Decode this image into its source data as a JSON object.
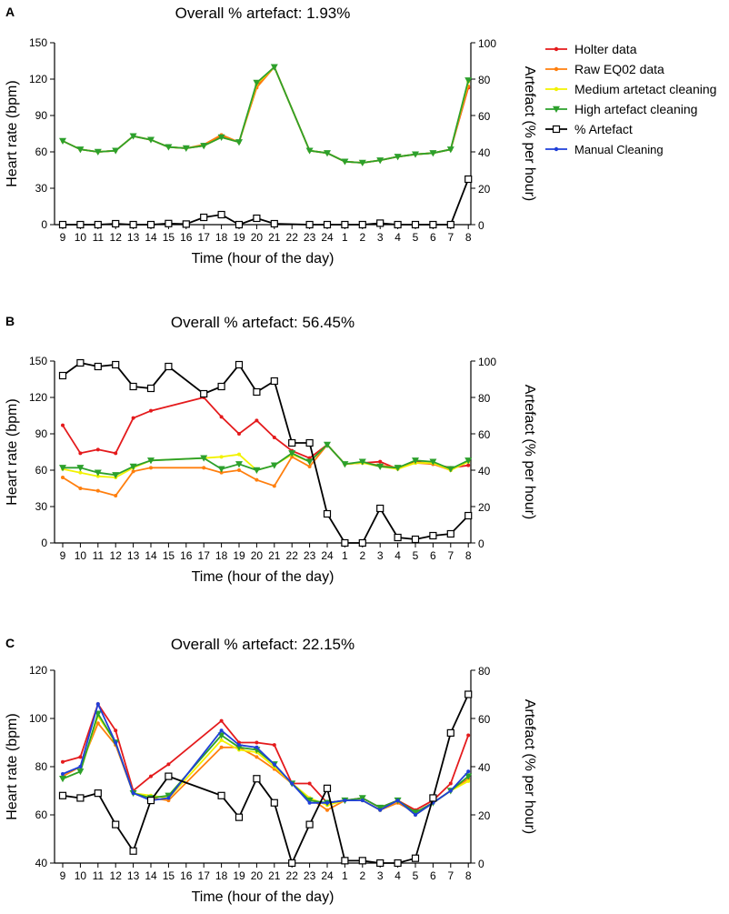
{
  "colors": {
    "holter": "#e41a1c",
    "raw": "#ff7f0e",
    "medium": "#f2f200",
    "high": "#2ca02c",
    "artefact": "#000000",
    "manual": "#1f3fd9"
  },
  "legend": [
    {
      "key": "holter",
      "label": "Holter data"
    },
    {
      "key": "raw",
      "label": "Raw EQ02 data"
    },
    {
      "key": "medium",
      "label": "Medium artetact cleaning"
    },
    {
      "key": "high",
      "label": "High artefact cleaning"
    },
    {
      "key": "artefact",
      "label": "% Artefact"
    },
    {
      "key": "manual",
      "label": "Manual Cleaning"
    }
  ],
  "chart_data": [
    {
      "panel": "A",
      "type": "line",
      "title": "Overall % artefact: 1.93%",
      "xlabel": "Time (hour of the day)",
      "ylabel": "Heart rate (bpm)",
      "y2label": "Artefact (% per hour)",
      "categories": [
        "9",
        "10",
        "11",
        "12",
        "13",
        "14",
        "15",
        "16",
        "17",
        "18",
        "19",
        "20",
        "21",
        "22",
        "23",
        "24",
        "1",
        "2",
        "3",
        "4",
        "5",
        "6",
        "7",
        "8"
      ],
      "ylim": [
        0,
        150
      ],
      "yticks": [
        0,
        30,
        60,
        90,
        120,
        150
      ],
      "y2lim": [
        0,
        100
      ],
      "y2ticks": [
        0,
        20,
        40,
        60,
        80,
        100
      ],
      "series": [
        {
          "key": "holter",
          "name": "Holter data",
          "axis": "left",
          "values": [
            69,
            62,
            60,
            61,
            73,
            70,
            64,
            63,
            65,
            73,
            68,
            115,
            130,
            null,
            61,
            59,
            52,
            51,
            53,
            56,
            58,
            59,
            62,
            113
          ]
        },
        {
          "key": "raw",
          "name": "Raw EQ02 data",
          "axis": "left",
          "values": [
            69,
            62,
            60,
            61,
            73,
            70,
            64,
            63,
            66,
            74,
            68,
            113,
            130,
            null,
            61,
            59,
            52,
            51,
            53,
            56,
            58,
            59,
            62,
            114
          ]
        },
        {
          "key": "medium",
          "name": "Medium artetact cleaning",
          "axis": "left",
          "values": [
            69,
            62,
            60,
            61,
            73,
            70,
            64,
            63,
            65,
            72,
            68,
            116,
            130,
            null,
            61,
            59,
            52,
            51,
            53,
            56,
            58,
            59,
            62,
            118
          ]
        },
        {
          "key": "high",
          "name": "High artefact cleaning",
          "axis": "left",
          "values": [
            69,
            62,
            60,
            61,
            73,
            70,
            64,
            63,
            65,
            72,
            68,
            117,
            130,
            null,
            61,
            59,
            52,
            51,
            53,
            56,
            58,
            59,
            62,
            119
          ]
        },
        {
          "key": "artefact",
          "name": "% Artefact",
          "axis": "right",
          "values": [
            0,
            0,
            0,
            0.5,
            0,
            0,
            0.6,
            0.3,
            4,
            5.5,
            0,
            3.5,
            0.5,
            null,
            0,
            0,
            0,
            0,
            0.8,
            0,
            0,
            0,
            0,
            25
          ]
        }
      ]
    },
    {
      "panel": "B",
      "type": "line",
      "title": "Overall % artefact: 56.45%",
      "xlabel": "Time (hour of the day)",
      "ylabel": "Heart rate (bpm)",
      "y2label": "Artefact (% per hour)",
      "categories": [
        "9",
        "10",
        "11",
        "12",
        "13",
        "14",
        "15",
        "16",
        "17",
        "18",
        "19",
        "20",
        "21",
        "22",
        "23",
        "24",
        "1",
        "2",
        "3",
        "4",
        "5",
        "6",
        "7",
        "8"
      ],
      "ylim": [
        0,
        150
      ],
      "yticks": [
        0,
        30,
        60,
        90,
        120,
        150
      ],
      "y2lim": [
        0,
        100
      ],
      "y2ticks": [
        0,
        20,
        40,
        60,
        80,
        100
      ],
      "series": [
        {
          "key": "holter",
          "name": "Holter data",
          "axis": "left",
          "values": [
            97,
            74,
            77,
            74,
            103,
            109,
            null,
            null,
            120,
            104,
            90,
            101,
            87,
            76,
            70,
            81,
            65,
            66,
            67,
            61,
            67,
            65,
            62,
            64
          ]
        },
        {
          "key": "raw",
          "name": "Raw EQ02 data",
          "axis": "left",
          "values": [
            54,
            45,
            43,
            39,
            59,
            62,
            null,
            null,
            62,
            58,
            60,
            52,
            47,
            71,
            63,
            81,
            65,
            66,
            64,
            62,
            66,
            65,
            60,
            68
          ]
        },
        {
          "key": "medium",
          "name": "Medium artetact cleaning",
          "axis": "left",
          "values": [
            61,
            58,
            55,
            54,
            62,
            68,
            null,
            null,
            70,
            71,
            73,
            60,
            64,
            73,
            67,
            81,
            65,
            66,
            63,
            61,
            66,
            66,
            60,
            67
          ]
        },
        {
          "key": "high",
          "name": "High artefact cleaning",
          "axis": "left",
          "values": [
            62,
            62,
            58,
            56,
            63,
            68,
            null,
            null,
            70,
            61,
            65,
            60,
            64,
            74,
            67,
            81,
            65,
            67,
            63,
            62,
            68,
            67,
            61,
            68
          ]
        },
        {
          "key": "artefact",
          "name": "% Artefact",
          "axis": "right",
          "values": [
            92,
            99,
            97,
            98,
            86,
            85,
            97,
            null,
            82,
            86,
            98,
            83,
            89,
            55,
            55,
            16,
            0,
            0,
            19,
            3,
            2,
            4,
            5,
            15
          ]
        }
      ]
    },
    {
      "panel": "C",
      "type": "line",
      "title": "Overall % artefact: 22.15%",
      "xlabel": "Time (hour of the day)",
      "ylabel": "Heart rate (bpm)",
      "y2label": "Artefact (% per hour)",
      "categories": [
        "9",
        "10",
        "11",
        "12",
        "13",
        "14",
        "15",
        "16",
        "17",
        "18",
        "19",
        "20",
        "21",
        "22",
        "23",
        "24",
        "1",
        "2",
        "3",
        "4",
        "5",
        "6",
        "7",
        "8"
      ],
      "ylim": [
        40,
        120
      ],
      "yticks": [
        40,
        60,
        80,
        100,
        120
      ],
      "y2lim": [
        0,
        80
      ],
      "y2ticks": [
        0,
        20,
        40,
        60,
        80
      ],
      "series": [
        {
          "key": "holter",
          "name": "Holter data",
          "axis": "left",
          "values": [
            82,
            84,
            106,
            95,
            70,
            76,
            81,
            null,
            null,
            99,
            90,
            90,
            89,
            73,
            73,
            65,
            66,
            67,
            63,
            66,
            62,
            66,
            73,
            93
          ]
        },
        {
          "key": "raw",
          "name": "Raw EQ02 data",
          "axis": "left",
          "values": [
            76,
            80,
            98,
            89,
            69,
            67,
            66,
            null,
            null,
            88,
            88,
            84,
            79,
            73,
            67,
            62,
            66,
            66,
            62,
            65,
            61,
            65,
            70,
            75
          ]
        },
        {
          "key": "medium",
          "name": "Medium artetact cleaning",
          "axis": "left",
          "values": [
            75,
            78,
            101,
            90,
            69,
            68,
            67,
            null,
            null,
            91,
            87,
            86,
            80,
            73,
            67,
            64,
            66,
            66,
            62,
            66,
            60,
            65,
            70,
            74
          ]
        },
        {
          "key": "high",
          "name": "High artefact cleaning",
          "axis": "left",
          "values": [
            75,
            78,
            102,
            90,
            69,
            67,
            68,
            null,
            null,
            93,
            88,
            87,
            81,
            73,
            66,
            65,
            66,
            67,
            63,
            66,
            61,
            65,
            70,
            76
          ]
        },
        {
          "key": "manual",
          "name": "Manual Cleaning",
          "axis": "left",
          "values": [
            77,
            80,
            106,
            90,
            69,
            66,
            67,
            null,
            null,
            95,
            89,
            88,
            81,
            73,
            65,
            65,
            66,
            66,
            62,
            66,
            60,
            65,
            70,
            78
          ]
        },
        {
          "key": "artefact",
          "name": "% Artefact",
          "axis": "right",
          "values": [
            28,
            27,
            29,
            16,
            5,
            26,
            36,
            null,
            null,
            28,
            19,
            35,
            25,
            0,
            16,
            31,
            1,
            1,
            0,
            0,
            2,
            27,
            54,
            70
          ]
        }
      ]
    }
  ]
}
